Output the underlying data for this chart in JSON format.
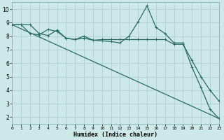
{
  "xlabel": "Humidex (Indice chaleur)",
  "xlim": [
    0,
    23
  ],
  "ylim": [
    1.5,
    10.5
  ],
  "xticks": [
    0,
    1,
    2,
    3,
    4,
    5,
    6,
    7,
    8,
    9,
    10,
    11,
    12,
    13,
    14,
    15,
    16,
    17,
    18,
    19,
    20,
    21,
    22,
    23
  ],
  "yticks": [
    2,
    3,
    4,
    5,
    6,
    7,
    8,
    9,
    10
  ],
  "background_color": "#cce8e8",
  "grid_color": "#aacccc",
  "line_color": "#2a6b60",
  "line1_x": [
    0,
    1,
    2,
    3,
    4,
    5,
    6,
    7,
    8,
    9,
    10,
    11,
    12,
    13,
    14,
    15,
    16,
    17,
    18,
    19,
    20,
    21,
    22,
    23
  ],
  "line1_y": [
    8.85,
    8.85,
    8.85,
    8.2,
    8.05,
    8.45,
    7.85,
    7.75,
    8.0,
    7.7,
    7.65,
    7.6,
    7.5,
    8.0,
    9.05,
    10.25,
    8.65,
    8.2,
    7.5,
    7.5,
    5.7,
    4.2,
    2.6,
    1.9
  ],
  "line2_x": [
    0,
    1,
    2,
    3,
    4,
    5,
    6,
    7,
    8,
    9,
    10,
    11,
    12,
    13,
    14,
    15,
    16,
    17,
    18,
    19,
    20,
    21,
    22,
    23
  ],
  "line2_y": [
    8.85,
    8.85,
    8.2,
    8.1,
    8.5,
    8.35,
    7.85,
    7.75,
    7.85,
    7.7,
    7.75,
    7.75,
    7.75,
    7.75,
    7.75,
    7.75,
    7.75,
    7.75,
    7.4,
    7.4,
    6.2,
    5.0,
    4.0,
    3.2
  ],
  "line3_x": [
    0,
    23
  ],
  "line3_y": [
    8.85,
    1.9
  ]
}
